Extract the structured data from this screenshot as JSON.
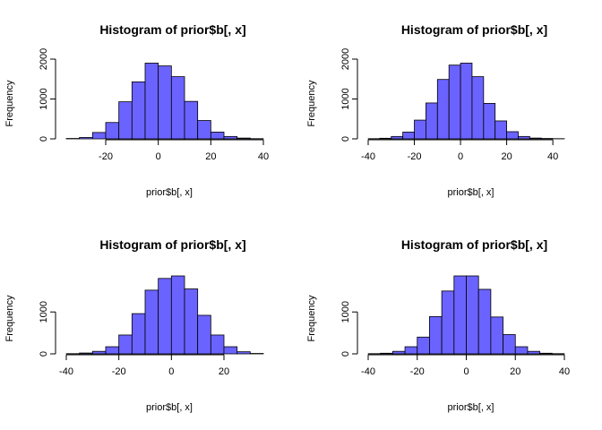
{
  "colors": {
    "bar_fill": "#6b63ff",
    "bar_stroke": "#000000"
  },
  "chart_data": [
    {
      "type": "bar",
      "title": "Histogram of prior$b[, x]",
      "xlabel": "prior$b[, x]",
      "ylabel": "Frequency",
      "bin_edges": [
        -35,
        -30,
        -25,
        -20,
        -15,
        -10,
        -5,
        0,
        5,
        10,
        15,
        20,
        25,
        30,
        35,
        40
      ],
      "values": [
        10,
        35,
        160,
        410,
        930,
        1430,
        1900,
        1830,
        1560,
        940,
        460,
        170,
        60,
        20,
        5
      ],
      "xlim": [
        -35,
        40
      ],
      "xticks": [
        -20,
        0,
        20,
        40
      ],
      "ylim": [
        0,
        2000
      ],
      "yticks": [
        0,
        1000,
        2000
      ]
    },
    {
      "type": "bar",
      "title": "Histogram of prior$b[, x]",
      "xlabel": "prior$b[, x]",
      "ylabel": "Frequency",
      "bin_edges": [
        -40,
        -35,
        -30,
        -25,
        -20,
        -15,
        -10,
        -5,
        0,
        5,
        10,
        15,
        20,
        25,
        30,
        35,
        40,
        45
      ],
      "values": [
        5,
        15,
        60,
        170,
        470,
        900,
        1490,
        1850,
        1900,
        1560,
        890,
        450,
        180,
        60,
        20,
        10,
        5
      ],
      "xlim": [
        -40,
        45
      ],
      "xticks": [
        -40,
        -20,
        0,
        20,
        40
      ],
      "ylim": [
        0,
        2000
      ],
      "yticks": [
        0,
        1000,
        2000
      ]
    },
    {
      "type": "bar",
      "title": "Histogram of prior$b[, x]",
      "xlabel": "prior$b[, x]",
      "ylabel": "Frequency",
      "bin_edges": [
        -40,
        -35,
        -30,
        -25,
        -20,
        -15,
        -10,
        -5,
        0,
        5,
        10,
        15,
        20,
        25,
        30,
        35
      ],
      "values": [
        5,
        20,
        60,
        170,
        450,
        960,
        1520,
        1800,
        1860,
        1550,
        920,
        450,
        170,
        50,
        10
      ],
      "xlim": [
        -40,
        35
      ],
      "xticks": [
        -40,
        -20,
        0,
        20
      ],
      "ylim": [
        0,
        1860
      ],
      "yticks": [
        0,
        1000
      ]
    },
    {
      "type": "bar",
      "title": "Histogram of prior$b[, x]",
      "xlabel": "prior$b[, x]",
      "ylabel": "Frequency",
      "bin_edges": [
        -40,
        -35,
        -30,
        -25,
        -20,
        -15,
        -10,
        -5,
        0,
        5,
        10,
        15,
        20,
        25,
        30,
        35,
        40
      ],
      "values": [
        5,
        15,
        60,
        170,
        400,
        890,
        1500,
        1860,
        1860,
        1540,
        880,
        460,
        170,
        60,
        15,
        5
      ],
      "xlim": [
        -40,
        40
      ],
      "xticks": [
        -40,
        -20,
        0,
        20,
        40
      ],
      "ylim": [
        0,
        1860
      ],
      "yticks": [
        0,
        1000
      ]
    }
  ]
}
